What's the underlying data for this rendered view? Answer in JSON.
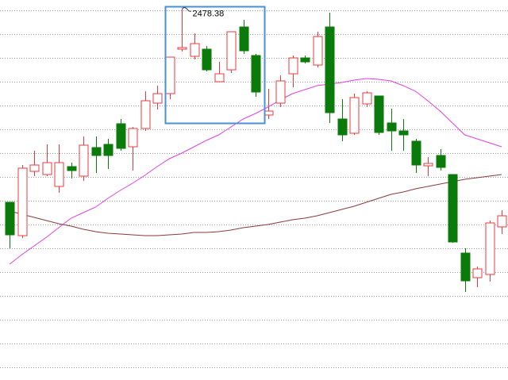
{
  "chart_data": {
    "type": "candlestick",
    "up_color": "#e8383d",
    "down_color": "#0a7a0a",
    "ylim": [
      2010,
      2490
    ],
    "yticks": [
      2477,
      2447,
      2417,
      2387,
      2357,
      2327,
      2297,
      2267,
      2237,
      2207,
      2177,
      2147,
      2117,
      2087,
      2057,
      2027
    ],
    "grid": true,
    "open": [
      2235,
      2193,
      2274,
      2270,
      2255,
      2280,
      2268,
      2304,
      2308,
      2334,
      2305,
      2328,
      2360,
      2372,
      2428,
      2419,
      2428,
      2387,
      2402,
      2456,
      2420,
      2345,
      2360,
      2397,
      2417,
      2408,
      2456,
      2340,
      2322,
      2359,
      2369,
      2335,
      2325,
      2312,
      2281,
      2294,
      2270,
      2171,
      2140,
      2144,
      2204
    ],
    "high": [
      2235,
      2282,
      2300,
      2308,
      2308,
      2285,
      2318,
      2318,
      2315,
      2340,
      2330,
      2375,
      2382,
      2418,
      2478.38,
      2448,
      2432,
      2412,
      2450,
      2465,
      2422,
      2378,
      2395,
      2420,
      2420,
      2450,
      2474,
      2365,
      2372,
      2375,
      2369,
      2353,
      2340,
      2315,
      2292,
      2302,
      2270,
      2177,
      2154,
      2212,
      2225
    ],
    "low": [
      2177,
      2190,
      2268,
      2268,
      2247,
      2265,
      2262,
      2272,
      2277,
      2300,
      2275,
      2325,
      2352,
      2365,
      2425,
      2415,
      2400,
      2387,
      2398,
      2422,
      2368,
      2340,
      2355,
      2380,
      2410,
      2405,
      2335,
      2312,
      2320,
      2355,
      2320,
      2300,
      2300,
      2272,
      2268,
      2275,
      2184,
      2122,
      2128,
      2135,
      2195
    ],
    "close": [
      2194,
      2278,
      2282,
      2285,
      2285,
      2275,
      2307,
      2294,
      2294,
      2303,
      2328,
      2363,
      2372,
      2418,
      2430,
      2435,
      2402,
      2397,
      2450,
      2426,
      2374,
      2350,
      2388,
      2417,
      2412,
      2444,
      2348,
      2320,
      2367,
      2373,
      2323,
      2325,
      2320,
      2282,
      2284,
      2279,
      2185,
      2136,
      2151,
      2209,
      2218
    ],
    "series": [
      {
        "color": "#e040e0",
        "values": [
          2157,
          2169,
          2180,
          2191,
          2203,
          2215,
          2222,
          2229,
          2240,
          2250,
          2259,
          2269,
          2280,
          2290,
          2297,
          2305,
          2313,
          2320,
          2330,
          2340,
          2347,
          2355,
          2364,
          2372,
          2377,
          2382,
          2384,
          2386,
          2389,
          2391,
          2390,
          2388,
          2382,
          2375,
          2363,
          2350,
          2335,
          2320,
          2315,
          2310,
          2305
        ]
      },
      {
        "color": "#8b3a3a",
        "values": [
          2224,
          2220,
          2216,
          2212,
          2208,
          2205,
          2201,
          2198,
          2196,
          2195,
          2194,
          2193,
          2193,
          2194,
          2195,
          2197,
          2197,
          2198,
          2200,
          2203,
          2205,
          2207,
          2210,
          2213,
          2215,
          2218,
          2222,
          2226,
          2230,
          2235,
          2240,
          2245,
          2248,
          2252,
          2255,
          2258,
          2261,
          2264,
          2266,
          2268,
          2270
        ]
      }
    ]
  }
}
